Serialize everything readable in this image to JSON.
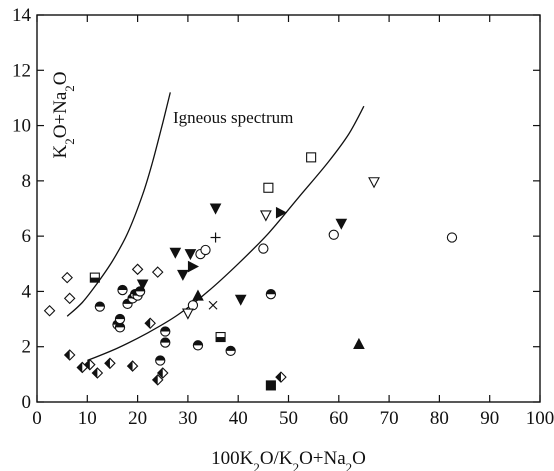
{
  "chart_data": {
    "type": "scatter",
    "title": "",
    "xlabel": {
      "parts": [
        "100K",
        "2",
        "O/K",
        "2",
        "O+Na",
        "2",
        "O"
      ]
    },
    "ylabel": {
      "parts": [
        "K",
        "2",
        "O+Na",
        "2",
        "O"
      ]
    },
    "xlim": [
      0,
      100
    ],
    "ylim": [
      0,
      14
    ],
    "xticks": [
      0,
      10,
      20,
      30,
      40,
      50,
      60,
      70,
      80,
      90,
      100
    ],
    "yticks": [
      0,
      2,
      4,
      6,
      8,
      10,
      12,
      14
    ],
    "grid": false,
    "legend": "none",
    "annotation": {
      "text": "Igneous spectrum",
      "x": 39,
      "y": 10.1
    },
    "curves": [
      {
        "points": [
          [
            6,
            3.1
          ],
          [
            9,
            3.6
          ],
          [
            12,
            4.3
          ],
          [
            15,
            5.1
          ],
          [
            18,
            6.1
          ],
          [
            21,
            7.5
          ],
          [
            23,
            8.7
          ],
          [
            25,
            10.1
          ],
          [
            26.5,
            11.2
          ]
        ]
      },
      {
        "points": [
          [
            10,
            1.5
          ],
          [
            16,
            1.95
          ],
          [
            22,
            2.5
          ],
          [
            28,
            3.15
          ],
          [
            34,
            4.0
          ],
          [
            40,
            5.0
          ],
          [
            46,
            6.1
          ],
          [
            52,
            7.4
          ],
          [
            58,
            8.7
          ],
          [
            62,
            9.7
          ],
          [
            65,
            10.7
          ]
        ]
      }
    ],
    "points": [
      {
        "x": 2.5,
        "y": 3.3,
        "marker": "diamond-open"
      },
      {
        "x": 6,
        "y": 4.5,
        "marker": "diamond-open"
      },
      {
        "x": 6.5,
        "y": 3.75,
        "marker": "diamond-open"
      },
      {
        "x": 20,
        "y": 4.8,
        "marker": "diamond-open"
      },
      {
        "x": 24,
        "y": 4.7,
        "marker": "diamond-open"
      },
      {
        "x": 6.5,
        "y": 1.7,
        "marker": "diamond-half"
      },
      {
        "x": 9,
        "y": 1.25,
        "marker": "diamond-half"
      },
      {
        "x": 10.5,
        "y": 1.35,
        "marker": "diamond-half"
      },
      {
        "x": 12,
        "y": 1.05,
        "marker": "diamond-half"
      },
      {
        "x": 14.5,
        "y": 1.4,
        "marker": "diamond-half"
      },
      {
        "x": 19,
        "y": 1.3,
        "marker": "diamond-half"
      },
      {
        "x": 22.5,
        "y": 2.85,
        "marker": "diamond-half"
      },
      {
        "x": 24,
        "y": 0.8,
        "marker": "diamond-half"
      },
      {
        "x": 25,
        "y": 1.05,
        "marker": "diamond-half"
      },
      {
        "x": 48.5,
        "y": 0.9,
        "marker": "diamond-half"
      },
      {
        "x": 11.5,
        "y": 4.5,
        "marker": "square-half"
      },
      {
        "x": 36.5,
        "y": 2.35,
        "marker": "square-half"
      },
      {
        "x": 46.5,
        "y": 0.6,
        "marker": "square-filled"
      },
      {
        "x": 46,
        "y": 7.75,
        "marker": "square-open"
      },
      {
        "x": 54.5,
        "y": 8.85,
        "marker": "square-open"
      },
      {
        "x": 12.5,
        "y": 3.45,
        "marker": "circle-half"
      },
      {
        "x": 16,
        "y": 2.8,
        "marker": "circle-half"
      },
      {
        "x": 16.5,
        "y": 2.7,
        "marker": "circle-half"
      },
      {
        "x": 16.5,
        "y": 3.0,
        "marker": "circle-half"
      },
      {
        "x": 17,
        "y": 4.05,
        "marker": "circle-half"
      },
      {
        "x": 18,
        "y": 3.55,
        "marker": "circle-half"
      },
      {
        "x": 19,
        "y": 3.75,
        "marker": "circle-half"
      },
      {
        "x": 19.5,
        "y": 3.9,
        "marker": "circle-half"
      },
      {
        "x": 20,
        "y": 3.85,
        "marker": "circle-half"
      },
      {
        "x": 20.5,
        "y": 4.0,
        "marker": "circle-half"
      },
      {
        "x": 24.5,
        "y": 1.5,
        "marker": "circle-half"
      },
      {
        "x": 25.5,
        "y": 2.55,
        "marker": "circle-half"
      },
      {
        "x": 25.5,
        "y": 2.15,
        "marker": "circle-half"
      },
      {
        "x": 32,
        "y": 2.05,
        "marker": "circle-half"
      },
      {
        "x": 38.5,
        "y": 1.85,
        "marker": "circle-half"
      },
      {
        "x": 46.5,
        "y": 3.9,
        "marker": "circle-half"
      },
      {
        "x": 31,
        "y": 3.5,
        "marker": "circle-open"
      },
      {
        "x": 32.5,
        "y": 5.35,
        "marker": "circle-open"
      },
      {
        "x": 33.5,
        "y": 5.5,
        "marker": "circle-open"
      },
      {
        "x": 45,
        "y": 5.55,
        "marker": "circle-open"
      },
      {
        "x": 59,
        "y": 6.05,
        "marker": "circle-open"
      },
      {
        "x": 82.5,
        "y": 5.95,
        "marker": "circle-open"
      },
      {
        "x": 21,
        "y": 4.25,
        "marker": "tri-down-filled"
      },
      {
        "x": 27.5,
        "y": 5.4,
        "marker": "tri-down-filled"
      },
      {
        "x": 29,
        "y": 4.6,
        "marker": "tri-down-filled"
      },
      {
        "x": 30.5,
        "y": 5.35,
        "marker": "tri-down-filled"
      },
      {
        "x": 35.5,
        "y": 7.0,
        "marker": "tri-down-filled"
      },
      {
        "x": 40.5,
        "y": 3.7,
        "marker": "tri-down-filled"
      },
      {
        "x": 60.5,
        "y": 6.45,
        "marker": "tri-down-filled"
      },
      {
        "x": 31,
        "y": 4.9,
        "marker": "tri-right-filled"
      },
      {
        "x": 48.5,
        "y": 6.85,
        "marker": "tri-right-filled"
      },
      {
        "x": 32,
        "y": 3.85,
        "marker": "tri-up-filled"
      },
      {
        "x": 64,
        "y": 2.1,
        "marker": "tri-up-filled"
      },
      {
        "x": 30,
        "y": 3.2,
        "marker": "tri-down-open"
      },
      {
        "x": 45.5,
        "y": 6.75,
        "marker": "tri-down-open"
      },
      {
        "x": 67,
        "y": 7.95,
        "marker": "tri-down-open"
      },
      {
        "x": 35.5,
        "y": 5.95,
        "marker": "plus"
      },
      {
        "x": 35,
        "y": 3.5,
        "marker": "cross"
      }
    ]
  }
}
